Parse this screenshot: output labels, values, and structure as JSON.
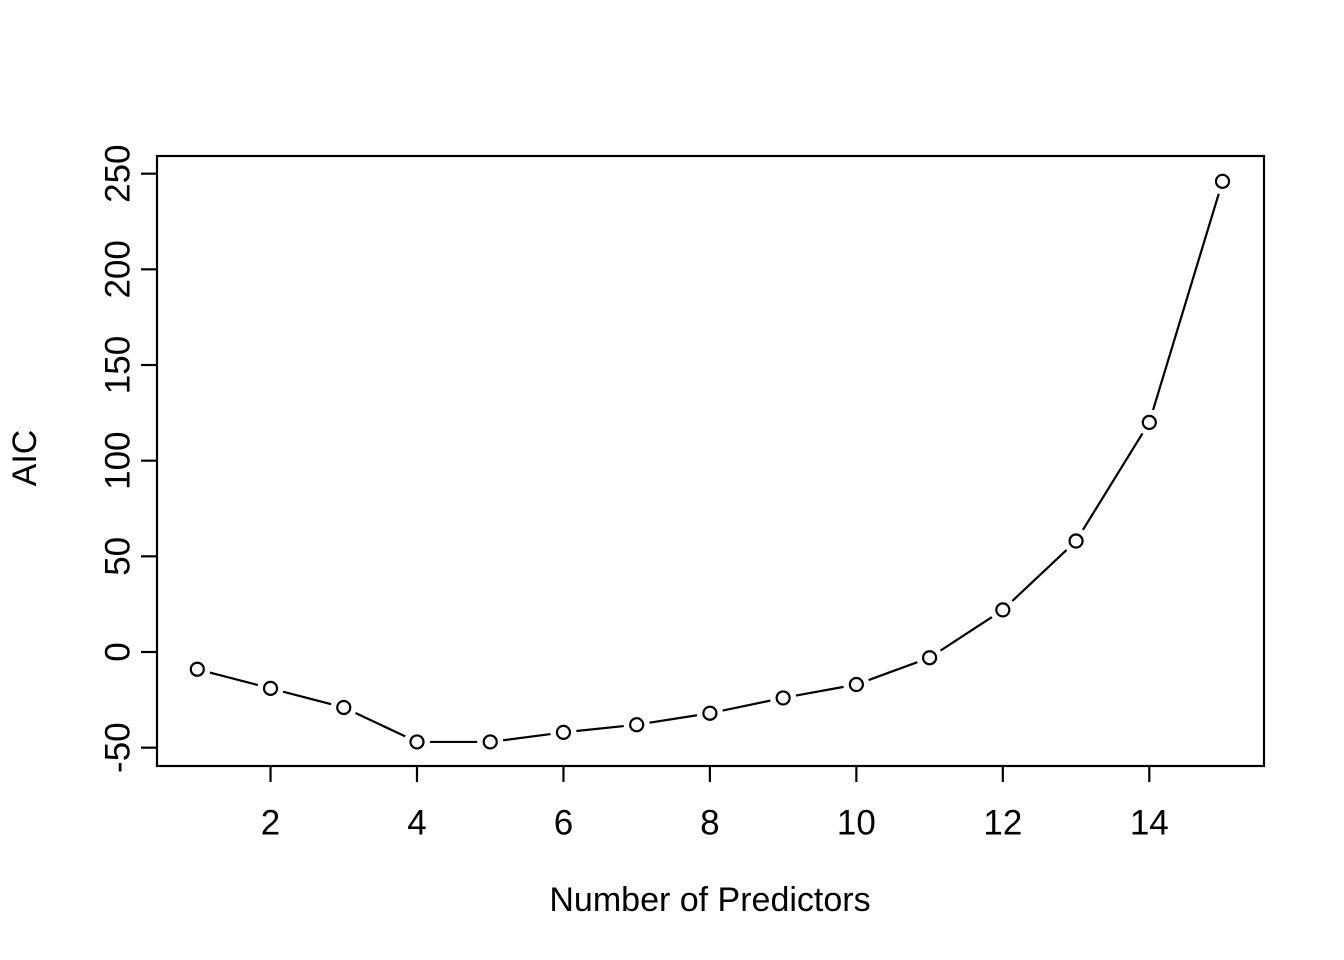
{
  "figure": {
    "background_color": "#ffffff",
    "foreground_color": "#000000"
  },
  "chart_data": {
    "type": "line",
    "title": "",
    "xlabel": "Number of Predictors",
    "ylabel": "AIC",
    "x": [
      1,
      2,
      3,
      4,
      5,
      6,
      7,
      8,
      9,
      10,
      11,
      12,
      13,
      14,
      15
    ],
    "y": [
      -9,
      -19,
      -29,
      -47,
      -47,
      -42,
      -38,
      -32,
      -24,
      -17,
      -3,
      22,
      58,
      120,
      246
    ],
    "series_name": "AIC",
    "xticks": [
      2,
      4,
      6,
      8,
      10,
      12,
      14
    ],
    "yticks": [
      -50,
      0,
      50,
      100,
      150,
      200,
      250
    ],
    "xlim": [
      1,
      15
    ],
    "ylim": [
      -50,
      250
    ],
    "marker": "open-circle",
    "line_type": "segments-with-gaps-at-points",
    "line_color": "#000000",
    "marker_fill": "#ffffff",
    "grid": false,
    "legend_position": "none"
  }
}
